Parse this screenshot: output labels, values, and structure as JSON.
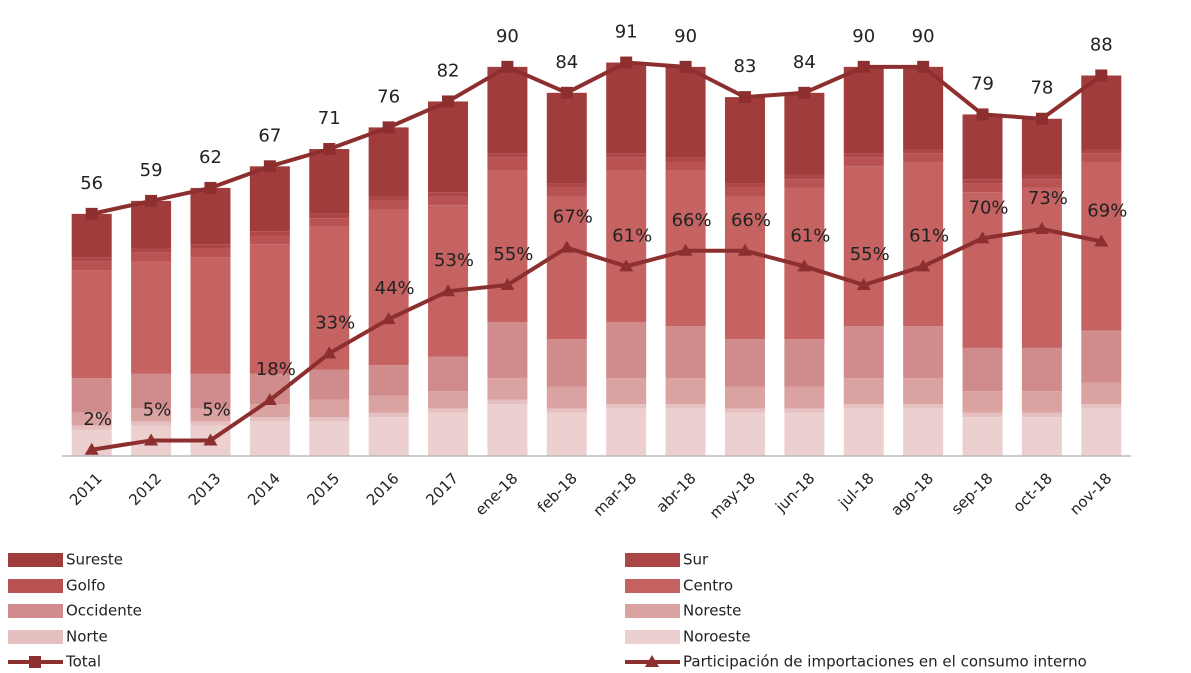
{
  "chart_data": {
    "type": "bar",
    "stacked": true,
    "categories": [
      "2011",
      "2012",
      "2013",
      "2014",
      "2015",
      "2016",
      "2017",
      "ene-18",
      "feb-18",
      "mar-18",
      "abr-18",
      "may-18",
      "jun-18",
      "jul-18",
      "ago-18",
      "sep-18",
      "oct-18",
      "nov-18"
    ],
    "ylim": [
      0,
      105
    ],
    "y2lim": [
      0,
      146
    ],
    "series": [
      {
        "name": "Noroeste",
        "color": "#ecd0d0",
        "values": [
          6,
          7,
          7,
          8,
          8,
          9,
          10,
          12,
          10,
          11,
          11,
          10,
          10,
          11,
          11,
          9,
          9,
          11
        ]
      },
      {
        "name": "Norte",
        "color": "#e6c0c0",
        "values": [
          1,
          1,
          1,
          1,
          1,
          1,
          1,
          1,
          1,
          1,
          1,
          1,
          1,
          1,
          1,
          1,
          1,
          1
        ]
      },
      {
        "name": "Noreste",
        "color": "#dba2a2",
        "values": [
          3,
          3,
          3,
          3,
          4,
          4,
          4,
          5,
          5,
          6,
          6,
          5,
          5,
          6,
          6,
          5,
          5,
          5
        ]
      },
      {
        "name": "Occidente",
        "color": "#d08c8c",
        "values": [
          8,
          8,
          8,
          7,
          7,
          7,
          8,
          13,
          11,
          13,
          12,
          11,
          11,
          12,
          12,
          10,
          10,
          12
        ]
      },
      {
        "name": "Centro",
        "color": "#c56262",
        "values": [
          25,
          26,
          27,
          30,
          33,
          36,
          35,
          35,
          33,
          35,
          36,
          33,
          35,
          37,
          38,
          36,
          37,
          39
        ]
      },
      {
        "name": "Golfo",
        "color": "#b95252",
        "values": [
          2,
          2,
          2,
          2,
          2,
          2,
          2,
          3,
          2,
          3,
          2,
          2,
          2,
          2,
          2,
          2,
          2,
          2
        ]
      },
      {
        "name": "Sur",
        "color": "#ad4646",
        "values": [
          1,
          1,
          1,
          1,
          1,
          1,
          1,
          1,
          1,
          1,
          1,
          1,
          1,
          1,
          1,
          1,
          1,
          1
        ]
      },
      {
        "name": "Sureste",
        "color": "#a13c3c",
        "values": [
          10,
          11,
          13,
          15,
          15,
          16,
          21,
          20,
          21,
          21,
          21,
          20,
          19,
          20,
          19,
          15,
          13,
          17
        ]
      },
      {
        "name": "Total",
        "type": "line",
        "marker": "square",
        "color": "#8e2f2f",
        "values": [
          56,
          59,
          62,
          67,
          71,
          76,
          82,
          90,
          84,
          91,
          90,
          83,
          84,
          90,
          90,
          79,
          78,
          88
        ]
      },
      {
        "name": "Participación de importaciones en el consumo interno",
        "type": "line",
        "marker": "triangle",
        "axis": "y2",
        "color": "#8e2f2f",
        "values": [
          2,
          5,
          5,
          18,
          33,
          44,
          53,
          55,
          67,
          61,
          66,
          66,
          61,
          55,
          61,
          70,
          73,
          69
        ],
        "value_labels": [
          "2%",
          "5%",
          "5%",
          "18%",
          "33%",
          "44%",
          "53%",
          "55%",
          "67%",
          "61%",
          "66%",
          "66%",
          "61%",
          "55%",
          "61%",
          "70%",
          "73%",
          "69%"
        ]
      }
    ]
  }
}
